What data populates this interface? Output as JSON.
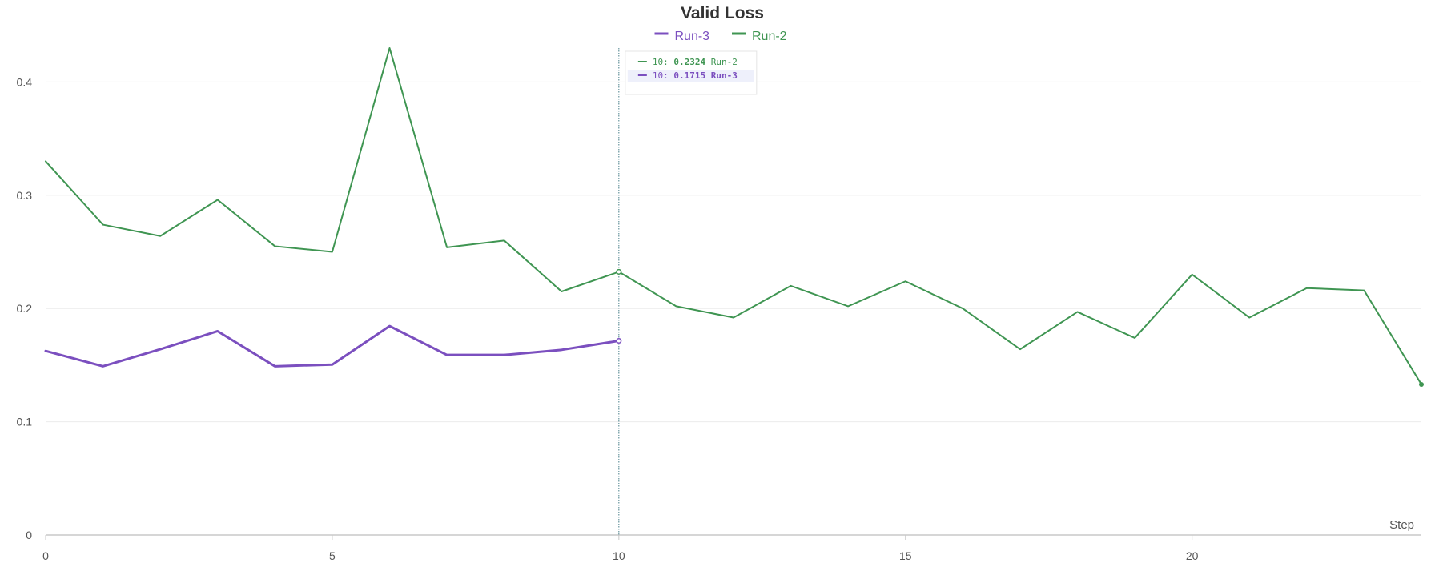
{
  "chart_data": {
    "type": "line",
    "title": "Valid Loss",
    "xlabel": "Step",
    "ylabel": "",
    "xlim": [
      0,
      24
    ],
    "ylim": [
      0,
      0.43
    ],
    "x_ticks": [
      0,
      5,
      10,
      15,
      20
    ],
    "y_ticks": [
      0,
      0.1,
      0.2,
      0.3,
      0.4
    ],
    "x_tick_labels": [
      "0",
      "5",
      "10",
      "15",
      "20"
    ],
    "y_tick_labels": [
      "0",
      "0.1",
      "0.2",
      "0.3",
      "0.4"
    ],
    "grid": true,
    "legend_position": "top-center",
    "series": [
      {
        "name": "Run-3",
        "color": "#7b4fbf",
        "x": [
          0,
          1,
          2,
          3,
          4,
          5,
          6,
          7,
          8,
          9,
          10
        ],
        "values": [
          0.1625,
          0.149,
          0.164,
          0.18,
          0.149,
          0.1505,
          0.1845,
          0.159,
          0.159,
          0.1635,
          0.1715
        ]
      },
      {
        "name": "Run-2",
        "color": "#3f9552",
        "x": [
          0,
          1,
          2,
          3,
          4,
          5,
          6,
          7,
          8,
          9,
          10,
          11,
          12,
          13,
          14,
          15,
          16,
          17,
          18,
          19,
          20,
          21,
          22,
          23,
          24
        ],
        "values": [
          0.33,
          0.274,
          0.264,
          0.296,
          0.255,
          0.25,
          0.43,
          0.254,
          0.26,
          0.215,
          0.2324,
          0.202,
          0.192,
          0.22,
          0.202,
          0.224,
          0.2,
          0.164,
          0.197,
          0.174,
          0.23,
          0.192,
          0.218,
          0.216,
          0.133
        ]
      }
    ],
    "hover": {
      "x": 10,
      "entries": [
        {
          "step": "10:",
          "value": "0.2324",
          "name": "Run-2",
          "color": "#3f9552"
        },
        {
          "step": "10:",
          "value": "0.1715",
          "name": "Run-3",
          "color": "#7b4fbf"
        }
      ]
    }
  }
}
